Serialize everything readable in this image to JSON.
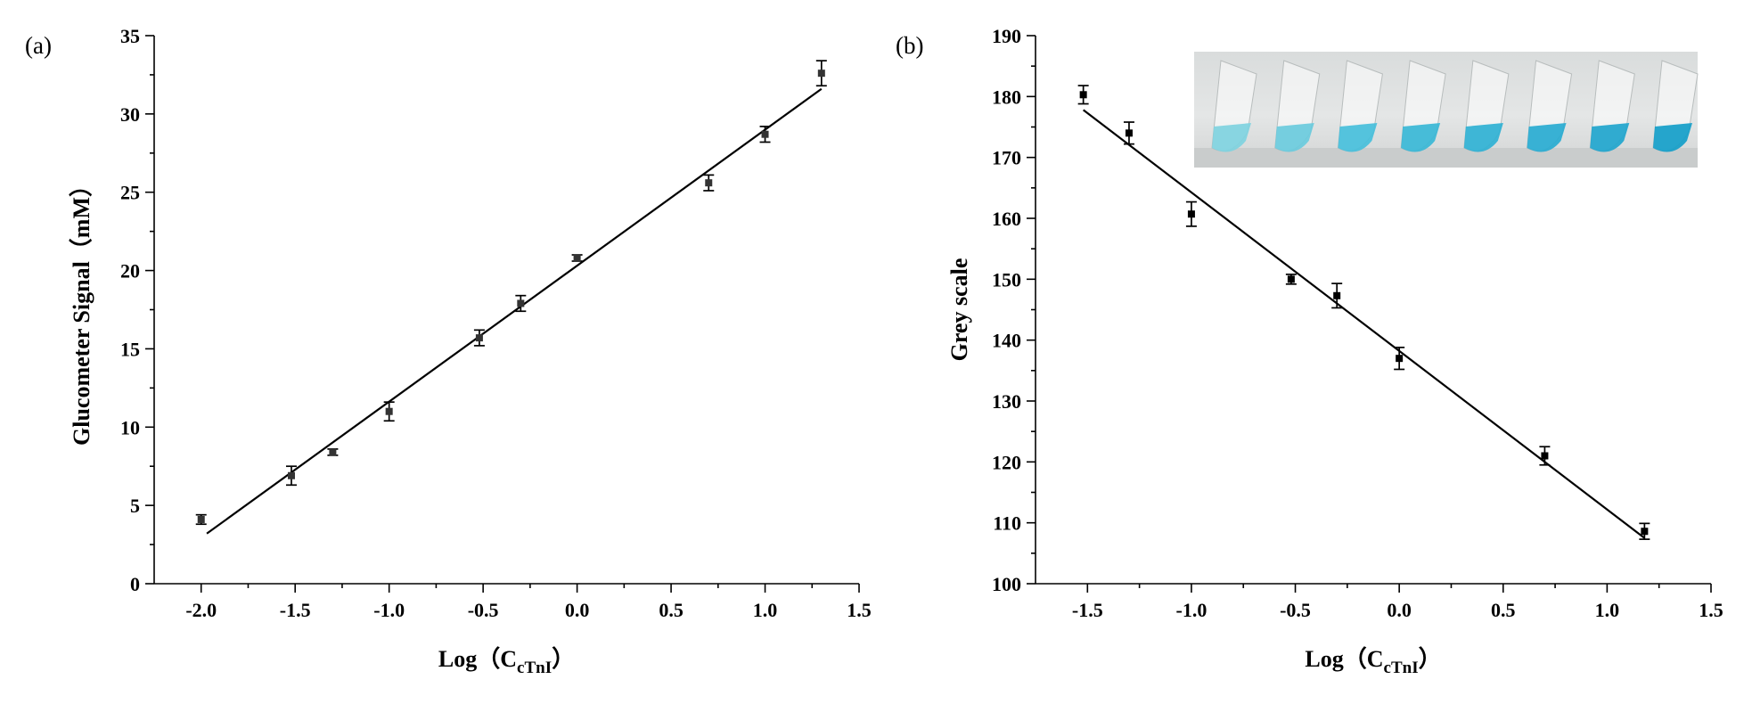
{
  "chart_data": [
    {
      "panel_label": "(a)",
      "type": "scatter",
      "xlabel": "Log（C",
      "xlabel_sub": "cTnI",
      "xlabel_close": "）",
      "ylabel": "Glucometer Signal（mM）",
      "xlim": [
        -2.25,
        1.5
      ],
      "ylim": [
        0,
        35
      ],
      "xticks": [
        -2.0,
        -1.5,
        -1.0,
        -0.5,
        0.0,
        0.5,
        1.0,
        1.5
      ],
      "xtick_labels": [
        "-2.0",
        "-1.5",
        "-1.0",
        "-0.5",
        "0.0",
        "0.5",
        "1.0",
        "1.5"
      ],
      "yticks": [
        0,
        5,
        10,
        15,
        20,
        25,
        30,
        35
      ],
      "ytick_labels": [
        "0",
        "5",
        "10",
        "15",
        "20",
        "25",
        "30",
        "35"
      ],
      "points": [
        {
          "x": -2.0,
          "y": 4.1,
          "err": 0.3
        },
        {
          "x": -1.52,
          "y": 6.9,
          "err": 0.6
        },
        {
          "x": -1.3,
          "y": 8.4,
          "err": 0.2
        },
        {
          "x": -1.0,
          "y": 11.0,
          "err": 0.6
        },
        {
          "x": -0.52,
          "y": 15.7,
          "err": 0.5
        },
        {
          "x": -0.3,
          "y": 17.9,
          "err": 0.5
        },
        {
          "x": 0.0,
          "y": 20.8,
          "err": 0.2
        },
        {
          "x": 0.7,
          "y": 25.6,
          "err": 0.5
        },
        {
          "x": 1.0,
          "y": 28.7,
          "err": 0.5
        },
        {
          "x": 1.3,
          "y": 32.6,
          "err": 0.8
        }
      ],
      "fit": [
        {
          "x": -1.97,
          "y": 3.2
        },
        {
          "x": 1.3,
          "y": 31.6
        }
      ]
    },
    {
      "panel_label": "(b)",
      "type": "scatter",
      "xlabel": "Log（C",
      "xlabel_sub": "cTnI",
      "xlabel_close": "）",
      "ylabel": "Grey scale",
      "xlim": [
        -1.75,
        1.5
      ],
      "ylim": [
        100,
        190
      ],
      "xticks": [
        -1.5,
        -1.0,
        -0.5,
        0.0,
        0.5,
        1.0,
        1.5
      ],
      "xtick_labels": [
        "-1.5",
        "-1.0",
        "-0.5",
        "0.0",
        "0.5",
        "1.0",
        "1.5"
      ],
      "yticks": [
        100,
        110,
        120,
        130,
        140,
        150,
        160,
        170,
        180,
        190
      ],
      "ytick_labels": [
        "100",
        "110",
        "120",
        "130",
        "140",
        "150",
        "160",
        "170",
        "180",
        "190"
      ],
      "points": [
        {
          "x": -1.52,
          "y": 180.3,
          "err": 1.5
        },
        {
          "x": -1.3,
          "y": 174.0,
          "err": 1.8
        },
        {
          "x": -1.0,
          "y": 160.7,
          "err": 2.0
        },
        {
          "x": -0.52,
          "y": 150.0,
          "err": 0.8
        },
        {
          "x": -0.3,
          "y": 147.3,
          "err": 2.0
        },
        {
          "x": 0.0,
          "y": 137.0,
          "err": 1.8
        },
        {
          "x": 0.7,
          "y": 121.0,
          "err": 1.5
        },
        {
          "x": 1.18,
          "y": 108.6,
          "err": 1.3
        }
      ],
      "fit": [
        {
          "x": -1.52,
          "y": 177.8
        },
        {
          "x": 1.18,
          "y": 107.5
        }
      ],
      "inset_tube_colors": [
        "#7fd3e0",
        "#6acbdd",
        "#47bfdb",
        "#38b7d6",
        "#2fb1d4",
        "#28abd1",
        "#1fa5cd",
        "#139ec9"
      ]
    }
  ]
}
